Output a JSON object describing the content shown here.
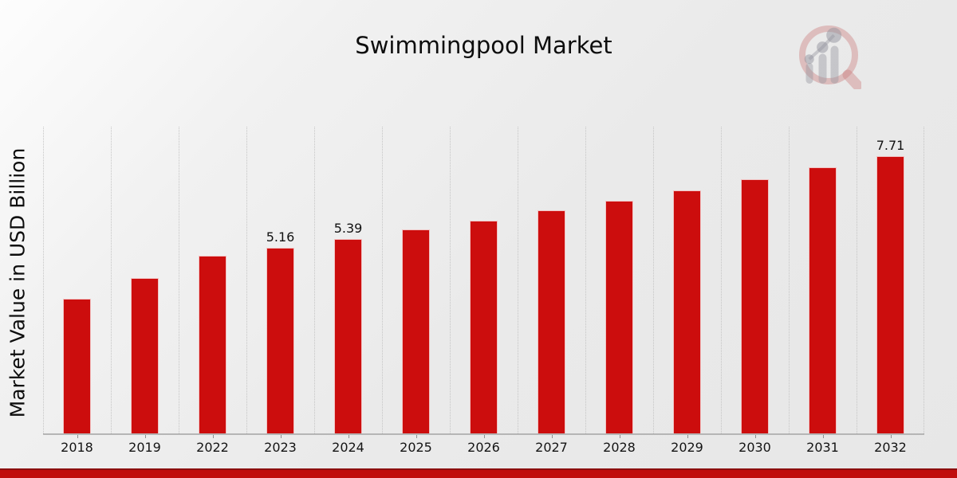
{
  "title": "Swimmingpool Market",
  "y_axis_label": "Market Value in USD Billion",
  "colors": {
    "bar": "#cc0d0d",
    "bar_edge": "rgba(255,255,255,0.75)",
    "stripe": "#c00d0d",
    "stripe_accent": "#8b0f0f",
    "gridline": "#c5c5c5",
    "axis_line": "#b5b5b5",
    "text": "#0d0d0d",
    "logo_ring": "#d4a9a9",
    "logo_gray": "#bfbfc6"
  },
  "logo": {
    "name": "magnifier-bar-chart-logo"
  },
  "chart_data": {
    "type": "bar",
    "title": "Swimmingpool Market",
    "xlabel": "",
    "ylabel": "Market Value in USD Billion",
    "categories": [
      "2018",
      "2019",
      "2022",
      "2023",
      "2024",
      "2025",
      "2026",
      "2027",
      "2028",
      "2029",
      "2030",
      "2031",
      "2032"
    ],
    "values": [
      3.75,
      4.31,
      4.94,
      5.16,
      5.39,
      5.66,
      5.91,
      6.19,
      6.46,
      6.75,
      7.07,
      7.39,
      7.71
    ],
    "data_labels": [
      "",
      "",
      "",
      "5.16",
      "5.39",
      "",
      "",
      "",
      "",
      "",
      "",
      "",
      "7.71"
    ],
    "ylim": [
      0,
      8.52
    ],
    "grid": "vertical-dotted",
    "legend": "none",
    "bar_color": "#cc0d0d",
    "unit": "USD Billion"
  }
}
